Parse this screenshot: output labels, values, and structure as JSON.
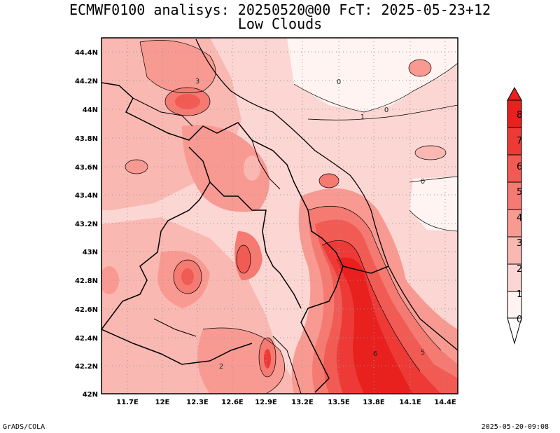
{
  "title_line1": "ECMWF0100 analisys: 20250520@00 FcT: 2025-05-23+12",
  "title_line2": "Low Clouds",
  "footer_left": "GrADS/COLA",
  "footer_right": "2025-05-20-09:08",
  "map": {
    "lon_ticks": [
      "11.7E",
      "12E",
      "12.3E",
      "12.6E",
      "12.9E",
      "13.2E",
      "13.5E",
      "13.8E",
      "14.1E",
      "14.4E"
    ],
    "lat_ticks": [
      "44.4N",
      "44.2N",
      "44N",
      "43.8N",
      "43.6N",
      "43.4N",
      "43.2N",
      "43N",
      "42.8N",
      "42.6N",
      "42.4N",
      "42.2N",
      "42N"
    ],
    "contour_labels": [
      "0",
      "0",
      "0",
      "1",
      "3",
      "2",
      "6",
      "5"
    ]
  },
  "colorbar": {
    "labels": [
      "8",
      "7",
      "6",
      "5",
      "4",
      "3",
      "2",
      "1",
      "0"
    ],
    "colors": [
      "#e8201e",
      "#ee3a36",
      "#f25a54",
      "#f57a72",
      "#f89a92",
      "#fab8b2",
      "#fcd6d2",
      "#fff4f2"
    ]
  }
}
